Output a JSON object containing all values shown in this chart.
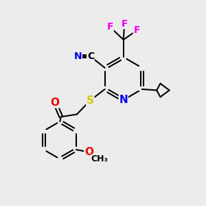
{
  "background_color": "#ececec",
  "atom_colors": {
    "N": "#0000ee",
    "S": "#cccc00",
    "O": "#ee0000",
    "F": "#ee00ee",
    "C": "#000000",
    "default": "#000000"
  },
  "bond_color": "#000000",
  "lw": 1.5
}
